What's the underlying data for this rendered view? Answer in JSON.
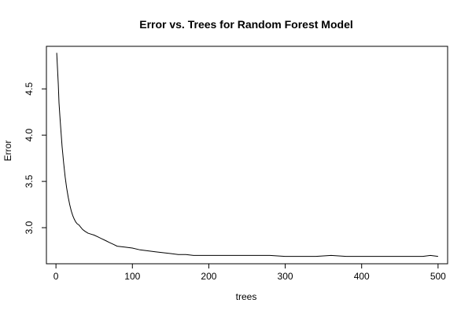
{
  "chart_data": {
    "type": "line",
    "title": "Error vs. Trees for Random Forest Model",
    "xlabel": "trees",
    "ylabel": "Error",
    "xlim": [
      -12.5,
      512.5
    ],
    "ylim": [
      2.61,
      4.96
    ],
    "x_ticks": [
      0,
      100,
      200,
      300,
      400,
      500
    ],
    "y_ticks": [
      3.0,
      3.5,
      4.0,
      4.5
    ],
    "x_tick_labels": [
      "0",
      "100",
      "200",
      "300",
      "400",
      "500"
    ],
    "y_tick_labels": [
      "3.0",
      "3.5",
      "4.0",
      "4.5"
    ],
    "grid": false,
    "line_color": "#000000",
    "series": [
      {
        "x": [
          1,
          2,
          3,
          4,
          5,
          6,
          8,
          10,
          12,
          14,
          16,
          18,
          20,
          22,
          24,
          26,
          28,
          30,
          32,
          35,
          38,
          42,
          46,
          50,
          55,
          60,
          65,
          70,
          75,
          80,
          90,
          100,
          110,
          120,
          130,
          140,
          150,
          160,
          170,
          180,
          190,
          200,
          220,
          240,
          260,
          280,
          300,
          320,
          340,
          360,
          380,
          400,
          420,
          440,
          460,
          480,
          490,
          500
        ],
        "y": [
          4.89,
          4.72,
          4.55,
          4.35,
          4.22,
          4.1,
          3.88,
          3.7,
          3.55,
          3.43,
          3.33,
          3.25,
          3.18,
          3.13,
          3.09,
          3.06,
          3.04,
          3.03,
          3.01,
          2.98,
          2.96,
          2.94,
          2.93,
          2.92,
          2.9,
          2.88,
          2.86,
          2.84,
          2.82,
          2.8,
          2.79,
          2.78,
          2.76,
          2.75,
          2.74,
          2.73,
          2.72,
          2.71,
          2.71,
          2.7,
          2.7,
          2.7,
          2.7,
          2.7,
          2.7,
          2.7,
          2.69,
          2.69,
          2.69,
          2.7,
          2.69,
          2.69,
          2.69,
          2.69,
          2.69,
          2.69,
          2.7,
          2.69
        ]
      }
    ]
  }
}
